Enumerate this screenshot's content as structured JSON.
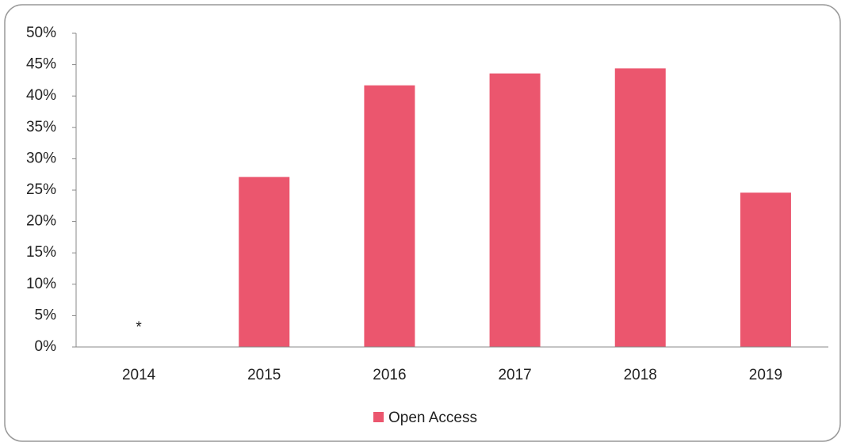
{
  "chart_data": {
    "type": "bar",
    "categories": [
      "2014",
      "2015",
      "2016",
      "2017",
      "2018",
      "2019"
    ],
    "series": [
      {
        "name": "Open Access",
        "color": "#eb566e",
        "values": [
          0,
          27.1,
          41.7,
          43.6,
          44.4,
          24.6
        ]
      }
    ],
    "ylim": [
      0,
      50
    ],
    "yticks": [
      {
        "value": 0,
        "label": "0%"
      },
      {
        "value": 5,
        "label": "5%"
      },
      {
        "value": 10,
        "label": "10%"
      },
      {
        "value": 15,
        "label": "15%"
      },
      {
        "value": 20,
        "label": "20%"
      },
      {
        "value": 25,
        "label": "25%"
      },
      {
        "value": 30,
        "label": "30%"
      },
      {
        "value": 35,
        "label": "35%"
      },
      {
        "value": 40,
        "label": "40%"
      },
      {
        "value": 45,
        "label": "45%"
      },
      {
        "value": 50,
        "label": "50%"
      }
    ],
    "annotations": [
      {
        "text": "*",
        "x": "2014"
      }
    ],
    "grid": false,
    "legend": "bottom"
  }
}
